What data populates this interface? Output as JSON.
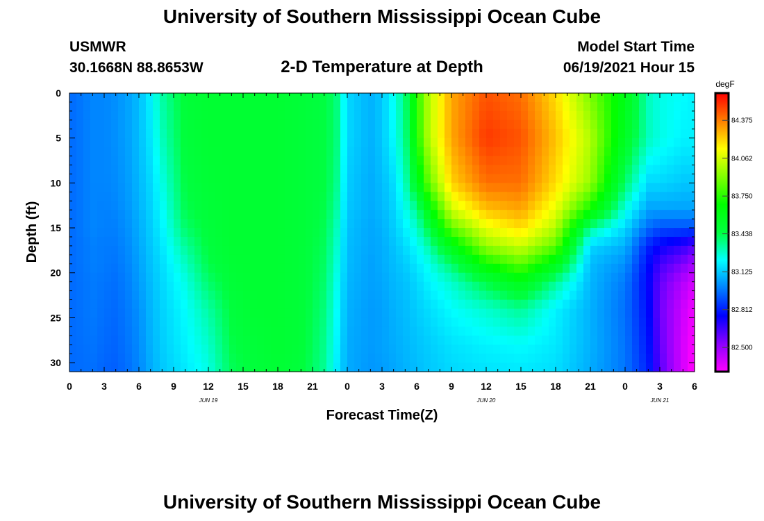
{
  "header": {
    "title": "University of Southern Mississippi Ocean Cube",
    "station": "USMWR",
    "coords": "30.1668N  88.8653W",
    "plot_title": "2-D Temperature at Depth",
    "model_start_label": "Model Start Time",
    "model_start_value": "06/19/2021 Hour 15"
  },
  "footer": {
    "title": "University of Southern Mississippi Ocean Cube"
  },
  "chart_data": {
    "type": "heatmap",
    "title": "2-D Temperature at Depth",
    "xlabel": "Forecast Time(Z)",
    "ylabel": "Depth (ft)",
    "x_range_hours": [
      0,
      54
    ],
    "y_range_ft": [
      0,
      31
    ],
    "x_ticks": [
      {
        "hour": 0,
        "label": "0"
      },
      {
        "hour": 3,
        "label": "3"
      },
      {
        "hour": 6,
        "label": "6"
      },
      {
        "hour": 9,
        "label": "9"
      },
      {
        "hour": 12,
        "label": "12"
      },
      {
        "hour": 15,
        "label": "15"
      },
      {
        "hour": 18,
        "label": "18"
      },
      {
        "hour": 21,
        "label": "21"
      },
      {
        "hour": 24,
        "label": "0"
      },
      {
        "hour": 27,
        "label": "3"
      },
      {
        "hour": 30,
        "label": "6"
      },
      {
        "hour": 33,
        "label": "9"
      },
      {
        "hour": 36,
        "label": "12"
      },
      {
        "hour": 39,
        "label": "15"
      },
      {
        "hour": 42,
        "label": "18"
      },
      {
        "hour": 45,
        "label": "21"
      },
      {
        "hour": 48,
        "label": "0"
      },
      {
        "hour": 51,
        "label": "3"
      },
      {
        "hour": 54,
        "label": "6"
      }
    ],
    "date_labels": [
      {
        "hour": 12,
        "label": "JUN 19"
      },
      {
        "hour": 36,
        "label": "JUN 20"
      },
      {
        "hour": 51,
        "label": "JUN 21"
      }
    ],
    "y_ticks": [
      0,
      5,
      10,
      15,
      20,
      25,
      30
    ],
    "colorbar": {
      "unit": "degF",
      "min": 82.3,
      "max": 84.6,
      "labels": [
        "84.375",
        "84.062",
        "83.750",
        "83.438",
        "83.125",
        "82.812",
        "82.500"
      ],
      "colors": [
        "#ff00ff",
        "#8c00ff",
        "#0000ff",
        "#0080ff",
        "#00ffff",
        "#00ff40",
        "#00ff00",
        "#80ff00",
        "#ffff00",
        "#ff8000",
        "#ff0000"
      ]
    },
    "time_knots_hours": [
      0,
      2,
      3,
      4,
      5,
      6,
      7,
      8,
      10,
      12,
      14,
      16,
      18,
      20,
      22,
      23,
      24,
      26,
      27,
      28,
      29,
      30,
      31,
      33,
      36,
      39,
      42,
      45,
      48,
      50,
      51,
      53,
      54
    ],
    "depth_knots_ft": [
      0,
      5,
      10,
      13,
      15,
      17,
      19,
      21,
      24,
      28,
      31
    ],
    "temperature_degF": [
      [
        82.95,
        82.95,
        82.95,
        82.95,
        82.95,
        82.95,
        82.95,
        82.95,
        82.95,
        82.95,
        82.95
      ],
      [
        83.0,
        83.0,
        83.0,
        83.0,
        83.0,
        82.99,
        82.99,
        82.98,
        82.98,
        82.97,
        82.96
      ],
      [
        83.0,
        83.0,
        83.0,
        82.99,
        82.99,
        82.98,
        82.98,
        82.97,
        82.96,
        82.95,
        82.94
      ],
      [
        83.02,
        83.02,
        83.01,
        83.0,
        82.99,
        82.98,
        82.97,
        82.96,
        82.95,
        82.94,
        82.93
      ],
      [
        83.05,
        83.05,
        83.04,
        83.03,
        83.02,
        83.01,
        83.0,
        82.99,
        82.98,
        82.97,
        82.96
      ],
      [
        83.1,
        83.1,
        83.09,
        83.08,
        83.07,
        83.06,
        83.05,
        83.04,
        83.02,
        83.01,
        83.0
      ],
      [
        83.2,
        83.18,
        83.15,
        83.14,
        83.13,
        83.12,
        83.11,
        83.1,
        83.09,
        83.08,
        83.07
      ],
      [
        83.33,
        83.3,
        83.25,
        83.22,
        83.2,
        83.18,
        83.16,
        83.15,
        83.14,
        83.13,
        83.12
      ],
      [
        83.48,
        83.47,
        83.45,
        83.43,
        83.4,
        83.34,
        83.29,
        83.25,
        83.22,
        83.2,
        83.18
      ],
      [
        83.5,
        83.5,
        83.49,
        83.48,
        83.47,
        83.46,
        83.44,
        83.4,
        83.33,
        83.28,
        83.25
      ],
      [
        83.5,
        83.5,
        83.5,
        83.5,
        83.5,
        83.5,
        83.49,
        83.48,
        83.46,
        83.44,
        83.42
      ],
      [
        83.5,
        83.5,
        83.5,
        83.5,
        83.5,
        83.5,
        83.5,
        83.5,
        83.5,
        83.48,
        83.47
      ],
      [
        83.5,
        83.5,
        83.5,
        83.5,
        83.5,
        83.5,
        83.5,
        83.5,
        83.5,
        83.5,
        83.49
      ],
      [
        83.48,
        83.48,
        83.48,
        83.48,
        83.48,
        83.48,
        83.48,
        83.48,
        83.48,
        83.48,
        83.47
      ],
      [
        83.45,
        83.45,
        83.45,
        83.44,
        83.43,
        83.42,
        83.41,
        83.4,
        83.38,
        83.36,
        83.35
      ],
      [
        83.4,
        83.4,
        83.38,
        83.35,
        83.32,
        83.3,
        83.28,
        83.26,
        83.24,
        83.22,
        83.2
      ],
      [
        83.15,
        83.15,
        83.13,
        83.12,
        83.11,
        83.1,
        83.1,
        83.09,
        83.08,
        83.07,
        83.07
      ],
      [
        83.08,
        83.08,
        83.07,
        83.07,
        83.06,
        83.06,
        83.05,
        83.05,
        83.04,
        83.04,
        83.03
      ],
      [
        83.12,
        83.12,
        83.1,
        83.09,
        83.08,
        83.07,
        83.07,
        83.06,
        83.05,
        83.05,
        83.04
      ],
      [
        83.24,
        83.22,
        83.16,
        83.14,
        83.13,
        83.11,
        83.1,
        83.09,
        83.08,
        83.07,
        83.06
      ],
      [
        83.38,
        83.36,
        83.3,
        83.24,
        83.2,
        83.16,
        83.13,
        83.11,
        83.1,
        83.09,
        83.08
      ],
      [
        83.75,
        83.72,
        83.55,
        83.35,
        83.28,
        83.22,
        83.18,
        83.15,
        83.13,
        83.11,
        83.1
      ],
      [
        84.0,
        84.0,
        83.85,
        83.6,
        83.45,
        83.32,
        83.24,
        83.2,
        83.16,
        83.13,
        83.12
      ],
      [
        84.3,
        84.3,
        84.22,
        84.05,
        83.85,
        83.6,
        83.4,
        83.28,
        83.22,
        83.17,
        83.15
      ],
      [
        84.45,
        84.5,
        84.4,
        84.25,
        84.1,
        83.95,
        83.7,
        83.45,
        83.28,
        83.2,
        83.17
      ],
      [
        84.4,
        84.45,
        84.4,
        84.3,
        84.2,
        84.05,
        83.85,
        83.6,
        83.35,
        83.22,
        83.18
      ],
      [
        84.2,
        84.25,
        84.2,
        84.1,
        84.0,
        83.85,
        83.6,
        83.35,
        83.2,
        83.18,
        83.16
      ],
      [
        83.9,
        84.0,
        83.95,
        83.7,
        83.35,
        83.15,
        83.1,
        83.09,
        83.08,
        83.08,
        83.07
      ],
      [
        83.6,
        83.55,
        83.4,
        83.25,
        83.15,
        83.08,
        83.02,
        82.98,
        82.96,
        82.97,
        82.97
      ],
      [
        83.3,
        83.3,
        83.15,
        83.05,
        82.95,
        82.82,
        82.78,
        82.76,
        82.78,
        82.8,
        82.82
      ],
      [
        83.25,
        83.25,
        83.15,
        83.05,
        82.9,
        82.75,
        82.65,
        82.6,
        82.58,
        82.6,
        82.62
      ],
      [
        83.22,
        83.2,
        83.12,
        83.05,
        82.9,
        82.68,
        82.55,
        82.45,
        82.4,
        82.38,
        82.38
      ],
      [
        83.2,
        83.2,
        83.12,
        83.05,
        82.9,
        82.62,
        82.48,
        82.38,
        82.32,
        82.3,
        82.28
      ]
    ]
  }
}
